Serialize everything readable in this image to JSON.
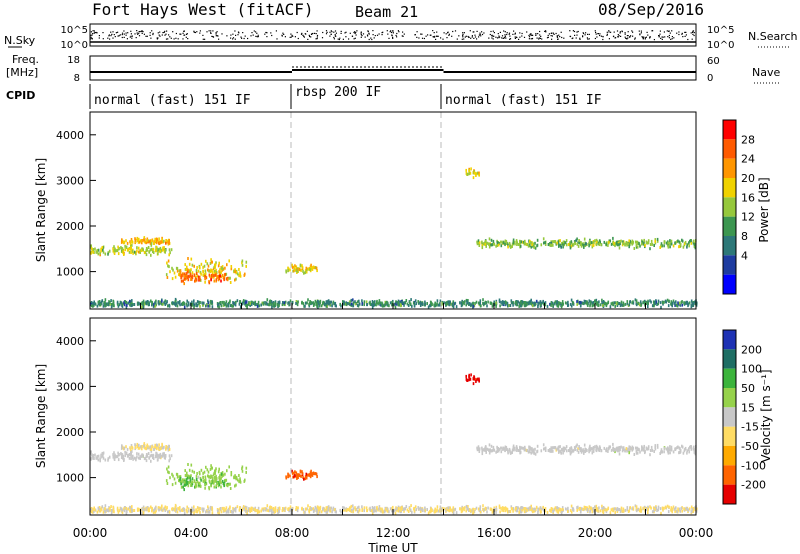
{
  "header": {
    "station": "Fort Hays West (fitACF)",
    "beam": "Beam 21",
    "date": "08/Sep/2016"
  },
  "noise_panel": {
    "left_label": "N.Sky",
    "right_label": "N.Search",
    "left_ticks": [
      "10^5",
      "10^0"
    ],
    "right_ticks": [
      "10^5",
      "10^0"
    ]
  },
  "freq_panel": {
    "left_label_1": "Freq.",
    "left_label_2": "[MHz]",
    "left_ticks": [
      "18",
      "8"
    ],
    "right_label": "Nave",
    "right_ticks": [
      "60",
      "0"
    ]
  },
  "cpid_panel": {
    "label": "CPID",
    "segments": [
      {
        "label": "normal (fast) 151 IF",
        "start_hour": 0,
        "end_hour": 8
      },
      {
        "label": "rbsp 200 IF",
        "start_hour": 8,
        "end_hour": 14
      },
      {
        "label": "normal (fast) 151 IF",
        "start_hour": 14,
        "end_hour": 24
      }
    ]
  },
  "power_panel": {
    "ylabel": "Slant Range [km]",
    "yticks": [
      "4000",
      "3000",
      "2000",
      "1000"
    ],
    "colorbar_label": "Power [dB]",
    "colorbar_ticks": [
      "28",
      "24",
      "20",
      "16",
      "12",
      "8",
      "4"
    ],
    "colors": [
      "#0000ff",
      "#1e3ca0",
      "#2d7878",
      "#3c9650",
      "#96c83c",
      "#f0d200",
      "#ff9600",
      "#ff5a00",
      "#ff0000"
    ]
  },
  "velocity_panel": {
    "ylabel": "Slant Range [km]",
    "yticks": [
      "4000",
      "3000",
      "2000",
      "1000"
    ],
    "colorbar_label": "Velocity [m s⁻¹]",
    "colorbar_ticks": [
      "200",
      "100",
      "50",
      "15",
      "-15",
      "-50",
      "-100",
      "-200"
    ],
    "colors": [
      "#1e32b4",
      "#1e6e64",
      "#3cb43c",
      "#96d24b",
      "#c8c8c8",
      "#ffdc64",
      "#ffaa00",
      "#ff6400",
      "#e60000"
    ]
  },
  "xaxis": {
    "label": "Time UT",
    "ticks": [
      "00:00",
      "04:00",
      "08:00",
      "12:00",
      "16:00",
      "20:00",
      "00:00"
    ]
  },
  "chart_data": {
    "type": "heatmap",
    "title": "Fort Hays West (fitACF) Beam 21 08/Sep/2016",
    "x_range_hours": [
      0,
      24
    ],
    "y_range_km": [
      180,
      4500
    ],
    "xlabel": "Time UT",
    "ylabel": "Slant Range [km]",
    "power_range_db": [
      0,
      30
    ],
    "velocity_range_ms": [
      -250,
      250
    ],
    "scatter_regions": [
      {
        "t_start": 0.0,
        "t_end": 3.2,
        "range_center_km": 1500,
        "range_width_km": 300,
        "power_db": 16,
        "velocity_ms": 0
      },
      {
        "t_start": 1.2,
        "t_end": 3.2,
        "range_center_km": 1700,
        "range_width_km": 200,
        "power_db": 20,
        "velocity_ms": -30
      },
      {
        "t_start": 3.0,
        "t_end": 6.2,
        "range_center_km": 1050,
        "range_width_km": 600,
        "power_db": 18,
        "velocity_ms": 60
      },
      {
        "t_start": 3.5,
        "t_end": 5.5,
        "range_center_km": 900,
        "range_width_km": 300,
        "power_db": 24,
        "velocity_ms": 80
      },
      {
        "t_start": 7.7,
        "t_end": 9.0,
        "range_center_km": 1100,
        "range_width_km": 300,
        "power_db": 18,
        "velocity_ms": -180
      },
      {
        "t_start": 14.8,
        "t_end": 15.4,
        "range_center_km": 3200,
        "range_width_km": 300,
        "power_db": 18,
        "velocity_ms": -220
      },
      {
        "t_start": 15.3,
        "t_end": 24.0,
        "range_center_km": 1650,
        "range_width_km": 250,
        "power_db": 14,
        "velocity_ms": 0
      },
      {
        "t_start": 0.0,
        "t_end": 24.0,
        "range_center_km": 330,
        "range_width_km": 200,
        "power_db": 10,
        "velocity_ms": -30
      }
    ],
    "cpid_segments": [
      {
        "name": "normal (fast) 151 IF",
        "start": 0,
        "end": 8
      },
      {
        "name": "rbsp 200 IF",
        "start": 8,
        "end": 14
      },
      {
        "name": "normal (fast) 151 IF",
        "start": 14,
        "end": 24
      }
    ]
  }
}
